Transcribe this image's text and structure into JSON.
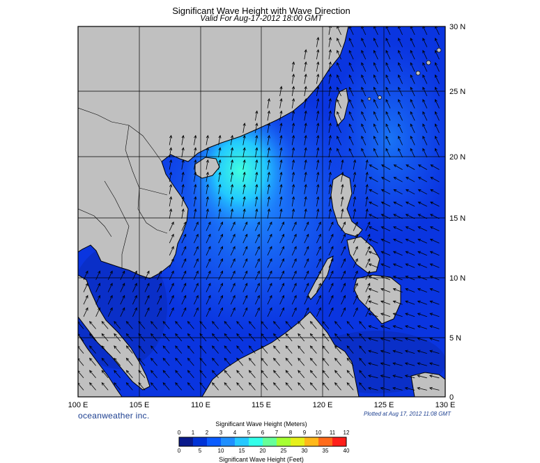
{
  "title": "Significant Wave Height with Wave Direction",
  "subtitle": "Valid For Aug-17-2012 18:00 GMT",
  "brand": "oceanweather inc.",
  "plotted": "Plotted at Aug 17, 2012 11:08 GMT",
  "longitude_labels": [
    "100 E",
    "105 E",
    "110 E",
    "115 E",
    "120 E",
    "125 E",
    "130 E"
  ],
  "latitude_labels": [
    "30 N",
    "25 N",
    "20 N",
    "15 N",
    "10 N",
    "5 N",
    "0"
  ],
  "colorbar": {
    "title_meters": "Significant Wave Height (Meters)",
    "title_feet": "Significant Wave Height (Feet)",
    "meter_ticks": [
      "0",
      "1",
      "2",
      "3",
      "4",
      "5",
      "6",
      "7",
      "8",
      "9",
      "10",
      "11",
      "12"
    ],
    "feet_ticks": [
      "0",
      "5",
      "10",
      "15",
      "20",
      "25",
      "30",
      "35",
      "40"
    ],
    "colors": [
      "#0a1a8c",
      "#0033d6",
      "#0a5cff",
      "#1f8fff",
      "#26c8ff",
      "#33ffea",
      "#66ff99",
      "#a6ff33",
      "#e6f01a",
      "#ffb81a",
      "#ff6b1a",
      "#ff1f1a"
    ]
  },
  "colors": {
    "land": "#c0c0c0",
    "land_border": "#000000",
    "sea_deep": "#0a2fd9",
    "sea_mid": "#1f6bff",
    "sea_high": "#33e6ff",
    "grid": "#000000",
    "brand": "#1a3d8f"
  }
}
